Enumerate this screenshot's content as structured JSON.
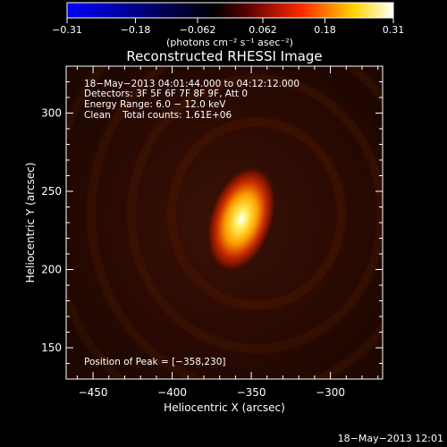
{
  "colorbar": {
    "ticks": [
      -0.31,
      -0.18,
      -0.062,
      0.062,
      0.18,
      0.31
    ],
    "tick_labels": [
      "−0.31",
      "−0.18",
      "−0.062",
      "0.062",
      "0.18",
      "0.31"
    ],
    "units_label": "(photons cm⁻² s⁻¹ asec⁻²)",
    "colors": [
      "#0000ff",
      "#000000",
      "#7a0000",
      "#ff3b00",
      "#ffd400",
      "#ffffff"
    ]
  },
  "chart_data": {
    "type": "heatmap",
    "title": "Reconstructed RHESSI Image",
    "xlabel": "Heliocentric X (arcsec)",
    "ylabel": "Heliocentric Y (arcsec)",
    "xlim": [
      -467,
      -267
    ],
    "ylim": [
      130,
      330
    ],
    "xticks": [
      -450,
      -400,
      -350,
      -300
    ],
    "yticks": [
      150,
      200,
      250,
      300
    ],
    "xtick_labels": [
      "−450",
      "−400",
      "−350",
      "−300"
    ],
    "ytick_labels": [
      "150",
      "200",
      "250",
      "300"
    ],
    "peak": {
      "x": -358,
      "y": 230,
      "value": 0.31
    },
    "value_range": [
      -0.31,
      0.31
    ],
    "info_lines": [
      "18−May−2013 04:01:44.000 to 04:12:12.000",
      "Detectors: 3F 5F 6F 7F 8F 9F, Att 0",
      "Energy Range: 6.0 − 12.0 keV",
      "Clean    Total counts: 1.61E+06"
    ],
    "peak_label": "Position of Peak = [−358,230]"
  },
  "footer": {
    "timestamp": "18−May−2013 12:01"
  }
}
